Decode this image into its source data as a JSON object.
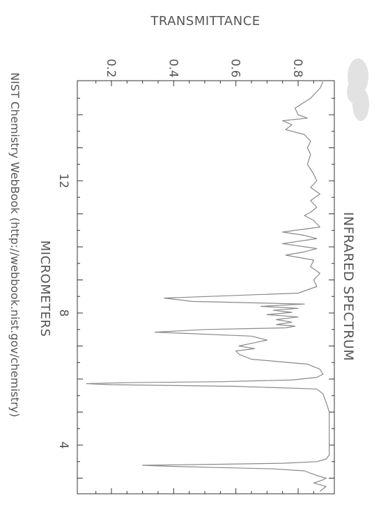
{
  "chart_data": {
    "type": "line",
    "title": "INFRARED SPECTRUM",
    "credit": "NIST Chemistry WebBook (http://webbook.nist.gov/chemistry)",
    "xlabel": "MICROMETERS",
    "ylabel": "TRANSMITTANCE",
    "xlim": [
      2.6,
      15.0
    ],
    "ylim": [
      0.12,
      0.9
    ],
    "x_ticks": [
      4,
      8,
      12
    ],
    "x_tick_labels": [
      "4",
      "8",
      "12"
    ],
    "y_ticks": [
      0.2,
      0.4,
      0.6,
      0.8
    ],
    "y_tick_labels": [
      "0.2",
      "0.4",
      "0.6",
      "0.8"
    ],
    "grid": false,
    "orientation": "rotated-90-clockwise",
    "colors": {
      "line": "#888888",
      "axes": "#333333",
      "text": "#555555",
      "blob": "#e2e2e2"
    },
    "series": [
      {
        "x": [
          2.6,
          2.75,
          2.85,
          2.95,
          3.0,
          3.08,
          3.15,
          3.22,
          3.28,
          3.32,
          3.36,
          3.39,
          3.42,
          3.45,
          3.5,
          3.58,
          3.7,
          3.85,
          4.0,
          4.3,
          4.7,
          5.0,
          5.3,
          5.55,
          5.7,
          5.78,
          5.83,
          5.86,
          5.89,
          5.92,
          5.97,
          6.05,
          6.15,
          6.3,
          6.45,
          6.6,
          6.75,
          6.85,
          6.92,
          7.0,
          7.08,
          7.18,
          7.3,
          7.42,
          7.5,
          7.55,
          7.6,
          7.65,
          7.72,
          7.8,
          7.88,
          7.95,
          8.02,
          8.08,
          8.14,
          8.2,
          8.27,
          8.35,
          8.45,
          8.6,
          8.8,
          9.0,
          9.2,
          9.4,
          9.6,
          9.75,
          9.85,
          9.95,
          10.1,
          10.25,
          10.35,
          10.45,
          10.6,
          10.8,
          10.95,
          11.05,
          11.2,
          11.4,
          11.6,
          11.8,
          12.0,
          12.2,
          12.5,
          12.8,
          13.0,
          13.2,
          13.4,
          13.55,
          13.7,
          13.82,
          13.9,
          14.0,
          14.2,
          14.5,
          14.8,
          15.0
        ],
        "y": [
          0.87,
          0.89,
          0.85,
          0.88,
          0.89,
          0.86,
          0.84,
          0.82,
          0.72,
          0.55,
          0.38,
          0.3,
          0.55,
          0.75,
          0.86,
          0.89,
          0.9,
          0.9,
          0.9,
          0.9,
          0.9,
          0.9,
          0.89,
          0.88,
          0.86,
          0.6,
          0.2,
          0.12,
          0.25,
          0.55,
          0.78,
          0.86,
          0.88,
          0.87,
          0.83,
          0.65,
          0.61,
          0.6,
          0.66,
          0.61,
          0.65,
          0.7,
          0.65,
          0.34,
          0.5,
          0.76,
          0.79,
          0.73,
          0.78,
          0.73,
          0.8,
          0.7,
          0.78,
          0.72,
          0.8,
          0.68,
          0.82,
          0.46,
          0.37,
          0.8,
          0.86,
          0.85,
          0.87,
          0.84,
          0.85,
          0.76,
          0.82,
          0.86,
          0.75,
          0.86,
          0.82,
          0.75,
          0.87,
          0.85,
          0.82,
          0.84,
          0.86,
          0.84,
          0.87,
          0.84,
          0.86,
          0.85,
          0.83,
          0.84,
          0.83,
          0.84,
          0.82,
          0.76,
          0.78,
          0.75,
          0.83,
          0.8,
          0.79,
          0.84,
          0.87,
          0.88
        ]
      }
    ]
  }
}
